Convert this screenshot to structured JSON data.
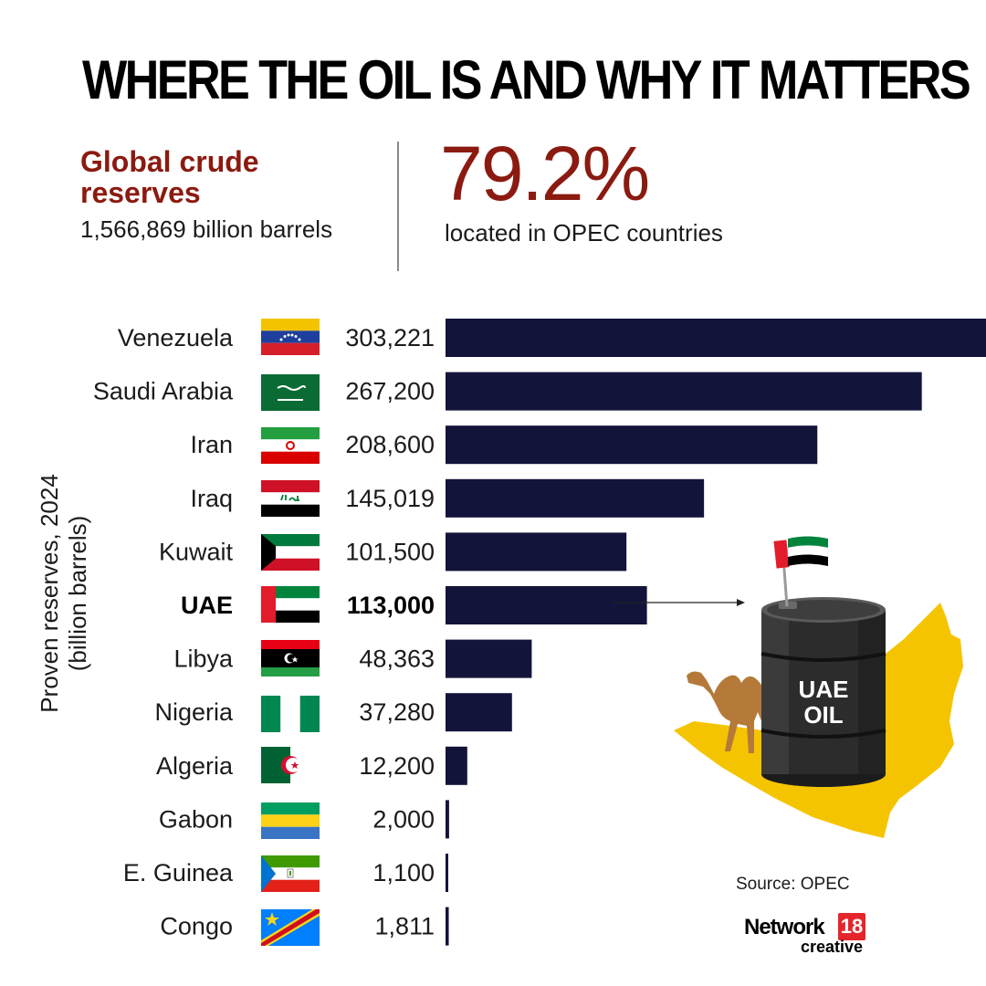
{
  "title": "WHERE THE OIL IS AND WHY IT MATTERS",
  "global_reserves": {
    "title": "Global crude reserves",
    "value": "1,566,869 billion barrels"
  },
  "opec_share": {
    "value": "79.2%",
    "label": "located in OPEC countries"
  },
  "chart_data": {
    "type": "bar",
    "orientation": "horizontal",
    "ylabel": "Proven reserves, 2024 (billion barrels)",
    "ylabel_lines": [
      "Proven reserves, 2024",
      "(billion barrels)"
    ],
    "categories": [
      "Venezuela",
      "Saudi Arabia",
      "Iran",
      "Iraq",
      "Kuwait",
      "UAE",
      "Libya",
      "Nigeria",
      "Algeria",
      "Gabon",
      "E. Guinea",
      "Congo"
    ],
    "values": [
      303221,
      267200,
      208600,
      145019,
      101500,
      113000,
      48363,
      37280,
      12200,
      2000,
      1100,
      1811
    ],
    "value_labels": [
      "303,221",
      "267,200",
      "208,600",
      "145,019",
      "101,500",
      "113,000",
      "48,363",
      "37,280",
      "12,200",
      "2,000",
      "1,100",
      "1,811"
    ],
    "highlight": "UAE",
    "xlim": [
      0,
      303221
    ],
    "grid": false,
    "legend": "none",
    "bar_color": "#12143a"
  },
  "flags": [
    "venezuela-flag",
    "saudi-arabia-flag",
    "iran-flag",
    "iraq-flag",
    "kuwait-flag",
    "uae-flag",
    "libya-flag",
    "nigeria-flag",
    "algeria-flag",
    "gabon-flag",
    "equatorial-guinea-flag",
    "congo-flag"
  ],
  "illustration": {
    "barrel_text": [
      "UAE",
      "OIL"
    ],
    "icons": [
      "uae-map-icon",
      "camel-icon",
      "oil-barrel-icon",
      "uae-flag-icon"
    ]
  },
  "source": "Source: OPEC",
  "logo": {
    "name": "Network",
    "number": "18",
    "sub": "creative"
  },
  "colors": {
    "accent": "#8b1a10",
    "bar": "#12143a",
    "map": "#f5c400"
  }
}
